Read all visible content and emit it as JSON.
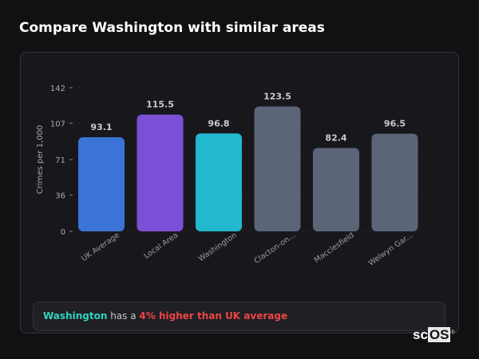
{
  "title": "Compare Washington with similar areas",
  "chart_data": {
    "type": "bar",
    "ylabel": "Crimes per 1,000",
    "ylim": [
      0,
      142
    ],
    "yticks": [
      0,
      36,
      71,
      107,
      142
    ],
    "grid": true,
    "categories": [
      "UK Average",
      "Local Area",
      "Washington",
      "Clacton-on...",
      "Macclesfield",
      "Welwyn Gar..."
    ],
    "values": [
      93.1,
      115.5,
      96.8,
      123.5,
      82.4,
      96.5
    ],
    "value_labels": [
      "93.1",
      "115.5",
      "96.8",
      "123.5",
      "82.4",
      "96.5"
    ],
    "colors": [
      "#3b74d6",
      "#7b4fd6",
      "#22b8cf",
      "#5b6577",
      "#5b6577",
      "#5b6577"
    ]
  },
  "summary": {
    "area": "Washington",
    "middle": " has a ",
    "comparison": "4% higher than UK average"
  },
  "logo": {
    "text_a": "sc",
    "text_b": "OS",
    "mark": "®"
  }
}
